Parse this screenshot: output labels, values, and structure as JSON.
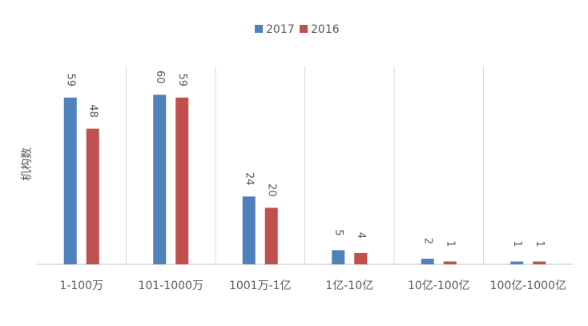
{
  "chart_data": {
    "type": "bar",
    "y_label": "机构数",
    "categories": [
      "1-100万",
      "101-1000万",
      "1001万-1亿",
      "1亿-10亿",
      "10亿-100亿",
      "100亿-1000亿"
    ],
    "series": [
      {
        "name": "2017",
        "color": "#4f81bd",
        "values": [
          59,
          60,
          24,
          5,
          2,
          1
        ]
      },
      {
        "name": "2016",
        "color": "#c0504d",
        "values": [
          48,
          59,
          20,
          4,
          1,
          1
        ]
      }
    ],
    "ylim": [
      0,
      70
    ],
    "legend": "top"
  }
}
